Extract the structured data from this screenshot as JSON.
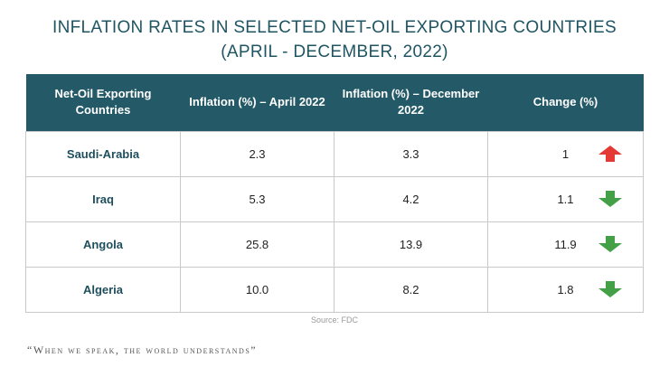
{
  "title": "INFLATION RATES IN SELECTED NET-OIL EXPORTING COUNTRIES (APRIL - DECEMBER, 2022)",
  "source": "Source: FDC",
  "tagline": "“When we speak, the world understands”",
  "colors": {
    "header_bg": "#245967",
    "up": "#e53935",
    "down": "#43a047",
    "title": "#1f5563"
  },
  "chart_data": {
    "type": "table",
    "columns": [
      "Net-Oil Exporting Countries",
      "Inflation (%) – April 2022",
      "Inflation (%) – December 2022",
      "Change (%)"
    ],
    "rows": [
      {
        "country": "Saudi-Arabia",
        "april": "2.3",
        "december": "3.3",
        "change": "1",
        "direction": "up",
        "icon": "red-up-arrow-icon"
      },
      {
        "country": "Iraq",
        "april": "5.3",
        "december": "4.2",
        "change": "1.1",
        "direction": "down",
        "icon": "green-down-arrow-icon"
      },
      {
        "country": "Angola",
        "april": "25.8",
        "december": "13.9",
        "change": "11.9",
        "direction": "down",
        "icon": "green-down-arrow-icon"
      },
      {
        "country": "Algeria",
        "april": "10.0",
        "december": "8.2",
        "change": "1.8",
        "direction": "down",
        "icon": "green-down-arrow-icon"
      }
    ]
  }
}
